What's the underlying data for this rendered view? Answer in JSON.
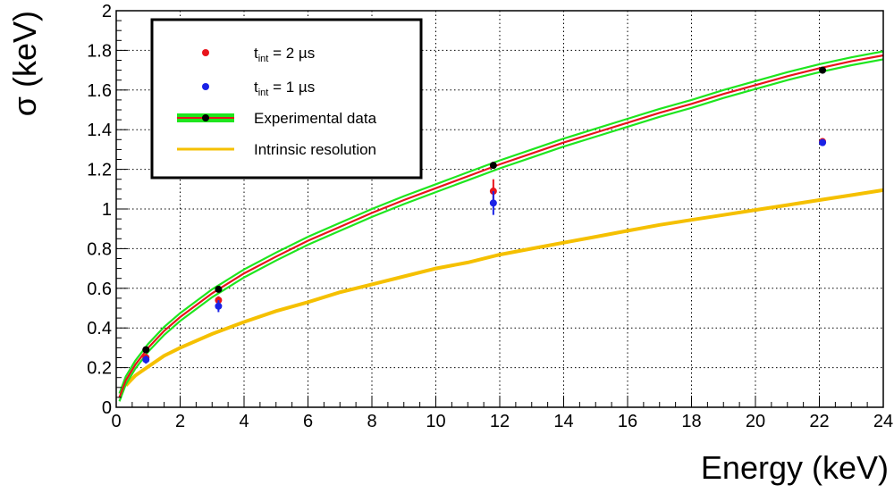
{
  "chart_data": {
    "type": "scatter",
    "xlabel": "Energy (keV)",
    "ylabel": "σ (keV)",
    "xlim": [
      0,
      24
    ],
    "ylim": [
      0,
      2
    ],
    "x_ticks": [
      0,
      2,
      4,
      6,
      8,
      10,
      12,
      14,
      16,
      18,
      20,
      22,
      24
    ],
    "x_tick_labels": [
      "0",
      "2",
      "4",
      "6",
      "8",
      "10",
      "12",
      "14",
      "16",
      "18",
      "20",
      "22",
      "24"
    ],
    "y_ticks": [
      0,
      0.2,
      0.4,
      0.6,
      0.8,
      1,
      1.2,
      1.4,
      1.6,
      1.8,
      2
    ],
    "y_tick_labels": [
      "0",
      "0.2",
      "0.4",
      "0.6",
      "0.8",
      "1",
      "1.2",
      "1.4",
      "1.6",
      "1.8",
      "2"
    ],
    "grid": true,
    "legend_position": "top-left",
    "series": [
      {
        "name": "t_int = 2 µs",
        "legend_main": "t",
        "legend_sub": "int",
        "legend_rest": " = 2 µs",
        "kind": "points",
        "color": "#e8141c",
        "points": [
          {
            "x": 0.93,
            "y": 0.25,
            "err": 0.02
          },
          {
            "x": 3.2,
            "y": 0.54,
            "err": 0.02
          },
          {
            "x": 11.8,
            "y": 1.09,
            "err": 0.06
          },
          {
            "x": 22.1,
            "y": 1.34,
            "err": 0.0
          }
        ]
      },
      {
        "name": "t_int = 1 µs",
        "legend_main": "t",
        "legend_sub": "int",
        "legend_rest": " = 1 µs",
        "kind": "points",
        "color": "#1a22e6",
        "points": [
          {
            "x": 0.93,
            "y": 0.24,
            "err": 0.02
          },
          {
            "x": 3.2,
            "y": 0.51,
            "err": 0.03
          },
          {
            "x": 11.8,
            "y": 1.03,
            "err": 0.06
          },
          {
            "x": 22.1,
            "y": 1.335,
            "err": 0.0
          }
        ]
      },
      {
        "name": "Experimental data",
        "kind": "fit",
        "color": "#000000",
        "line_color": "#e8141c",
        "band_color": "#1ee61e",
        "band_halfwidth": 0.02,
        "points": [
          {
            "x": 0.93,
            "y": 0.29
          },
          {
            "x": 3.2,
            "y": 0.595
          },
          {
            "x": 11.8,
            "y": 1.22
          },
          {
            "x": 22.1,
            "y": 1.7
          }
        ],
        "curve": [
          {
            "x": 0.1,
            "y": 0.05
          },
          {
            "x": 0.3,
            "y": 0.135
          },
          {
            "x": 0.6,
            "y": 0.215
          },
          {
            "x": 1,
            "y": 0.3
          },
          {
            "x": 1.5,
            "y": 0.385
          },
          {
            "x": 2,
            "y": 0.455
          },
          {
            "x": 3,
            "y": 0.575
          },
          {
            "x": 4,
            "y": 0.675
          },
          {
            "x": 5,
            "y": 0.76
          },
          {
            "x": 6,
            "y": 0.84
          },
          {
            "x": 7,
            "y": 0.91
          },
          {
            "x": 8,
            "y": 0.98
          },
          {
            "x": 9,
            "y": 1.045
          },
          {
            "x": 10,
            "y": 1.105
          },
          {
            "x": 11,
            "y": 1.165
          },
          {
            "x": 12,
            "y": 1.225
          },
          {
            "x": 13,
            "y": 1.28
          },
          {
            "x": 14,
            "y": 1.335
          },
          {
            "x": 15,
            "y": 1.385
          },
          {
            "x": 16,
            "y": 1.435
          },
          {
            "x": 17,
            "y": 1.485
          },
          {
            "x": 18,
            "y": 1.53
          },
          {
            "x": 19,
            "y": 1.58
          },
          {
            "x": 20,
            "y": 1.625
          },
          {
            "x": 21,
            "y": 1.67
          },
          {
            "x": 22,
            "y": 1.71
          },
          {
            "x": 23,
            "y": 1.745
          },
          {
            "x": 24,
            "y": 1.775
          }
        ]
      },
      {
        "name": "Intrinsic resolution",
        "kind": "curve",
        "color": "#f5c000",
        "curve": [
          {
            "x": 0.3,
            "y": 0.11
          },
          {
            "x": 0.6,
            "y": 0.16
          },
          {
            "x": 1,
            "y": 0.205
          },
          {
            "x": 1.5,
            "y": 0.26
          },
          {
            "x": 2,
            "y": 0.3
          },
          {
            "x": 3,
            "y": 0.37
          },
          {
            "x": 4,
            "y": 0.43
          },
          {
            "x": 5,
            "y": 0.485
          },
          {
            "x": 6,
            "y": 0.53
          },
          {
            "x": 7,
            "y": 0.58
          },
          {
            "x": 8,
            "y": 0.62
          },
          {
            "x": 9,
            "y": 0.66
          },
          {
            "x": 10,
            "y": 0.7
          },
          {
            "x": 11,
            "y": 0.73
          },
          {
            "x": 12,
            "y": 0.77
          },
          {
            "x": 13,
            "y": 0.8
          },
          {
            "x": 14,
            "y": 0.83
          },
          {
            "x": 15,
            "y": 0.86
          },
          {
            "x": 16,
            "y": 0.89
          },
          {
            "x": 17,
            "y": 0.92
          },
          {
            "x": 18,
            "y": 0.945
          },
          {
            "x": 19,
            "y": 0.97
          },
          {
            "x": 20,
            "y": 0.995
          },
          {
            "x": 21,
            "y": 1.02
          },
          {
            "x": 22,
            "y": 1.045
          },
          {
            "x": 23,
            "y": 1.07
          },
          {
            "x": 24,
            "y": 1.095
          }
        ]
      }
    ]
  }
}
